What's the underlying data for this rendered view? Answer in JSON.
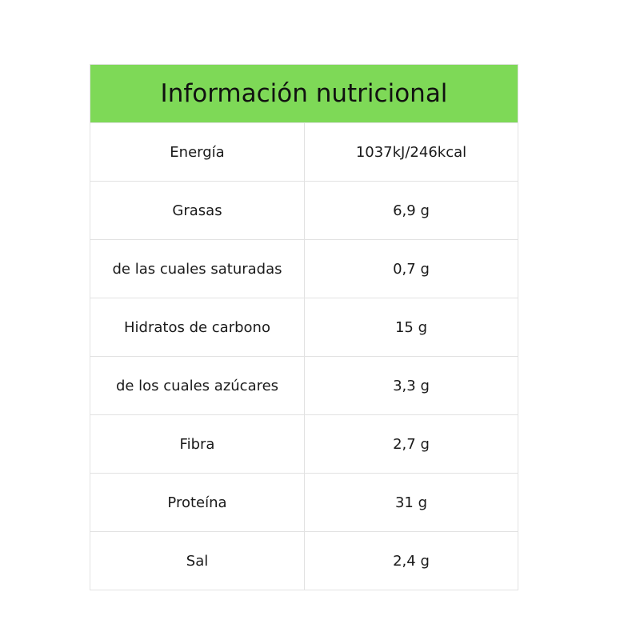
{
  "title": "Información nutricional",
  "header_color": "#7ed957",
  "rows": [
    {
      "label": "Energía",
      "value": "1037kJ/246kcal"
    },
    {
      "label": "Grasas",
      "value": "6,9 g"
    },
    {
      "label": "de las cuales saturadas",
      "value": "0,7 g"
    },
    {
      "label": "Hidratos de carbono",
      "value": "15 g"
    },
    {
      "label": "de los cuales azúcares",
      "value": "3,3 g"
    },
    {
      "label": "Fibra",
      "value": "2,7 g"
    },
    {
      "label": "Proteína",
      "value": "31 g"
    },
    {
      "label": "Sal",
      "value": "2,4 g"
    }
  ]
}
